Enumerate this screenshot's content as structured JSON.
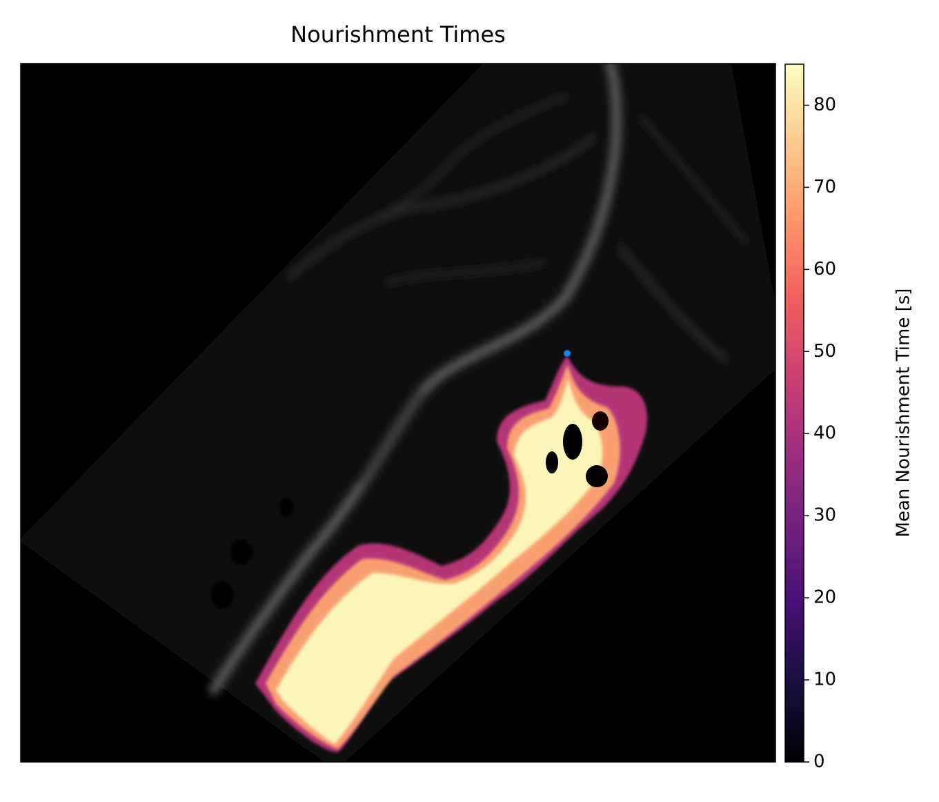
{
  "chart_data": {
    "type": "image",
    "title": "Nourishment Times",
    "colorbar_label": "Mean Nourishment Time [s]",
    "colormap": "magma",
    "clim": [
      0,
      85
    ],
    "cticks": [
      0,
      10,
      20,
      30,
      40,
      50,
      60,
      70,
      80
    ]
  }
}
